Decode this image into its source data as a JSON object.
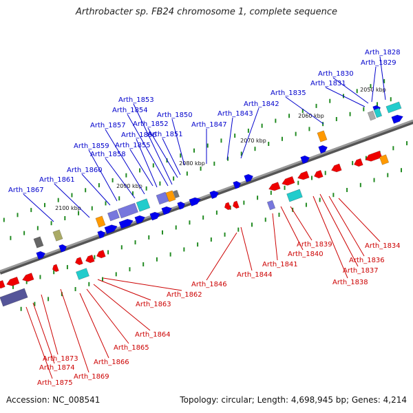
{
  "title": "Arthrobacter sp. FB24 chromosome 1, complete sequence",
  "footer": {
    "accession": "Accession: NC_008541",
    "topology": "Topology: circular; Length: 4,698,945 bp; Genes: 4,214"
  },
  "colors": {
    "forward_label": "#0000cc",
    "reverse_label": "#cc0000",
    "forward_gene": "#0000ee",
    "reverse_gene": "#ee0000",
    "backbone": "#777777",
    "tick": "#228b22"
  },
  "scale_labels": [
    "2050 kbp",
    "2060 kbp",
    "2070 kbp",
    "2080 kbp",
    "2090 kbp",
    "2100 kbp"
  ],
  "forward_labels": [
    "Arth_1828",
    "Arth_1829",
    "Arth_1830",
    "Arth_1831",
    "Arth_1835",
    "Arth_1842",
    "Arth_1843",
    "Arth_1847",
    "Arth_1850",
    "Arth_1851",
    "Arth_1852",
    "Arth_1853",
    "Arth_1854",
    "Arth_1855",
    "Arth_1856",
    "Arth_1857",
    "Arth_1858",
    "Arth_1859",
    "Arth_1860",
    "Arth_1861",
    "Arth_1867"
  ],
  "reverse_labels": [
    "Arth_1834",
    "Arth_1836",
    "Arth_1837",
    "Arth_1838",
    "Arth_1839",
    "Arth_1840",
    "Arth_1841",
    "Arth_1844",
    "Arth_1846",
    "Arth_1862",
    "Arth_1863",
    "Arth_1864",
    "Arth_1865",
    "Arth_1866",
    "Arth_1869",
    "Arth_1873",
    "Arth_1874",
    "Arth_1875"
  ]
}
